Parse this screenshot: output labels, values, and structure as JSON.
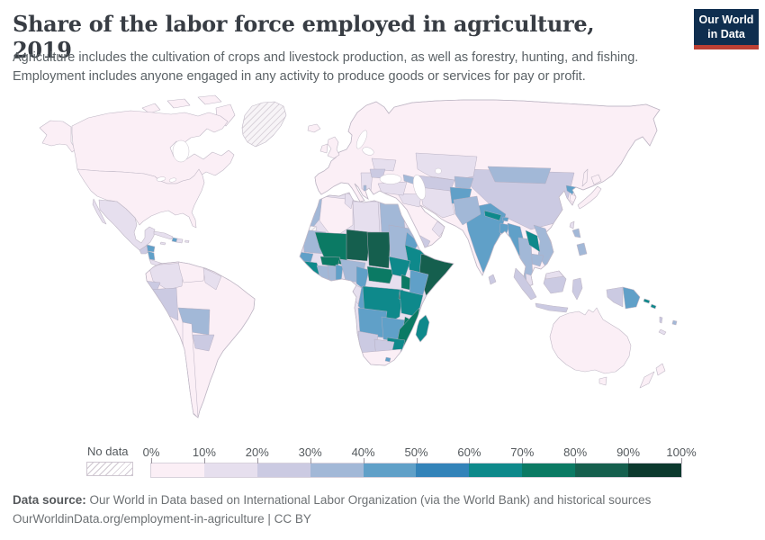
{
  "header": {
    "title": "Share of the labor force employed in agriculture, 2019",
    "subtitle_line1": "Agriculture includes the cultivation of crops and livestock production, as well as forestry, hunting, and fishing.",
    "subtitle_line2": "Employment includes anyone engaged in any activity to produce goods or services for pay or profit."
  },
  "logo": {
    "line1": "Our World",
    "line2": "in Data",
    "bg": "#0f2e4f",
    "accent": "#bc4034"
  },
  "chart_data": {
    "type": "heatmap",
    "subtype": "choropleth-world-map",
    "title": "Share of the labor force employed in agriculture, 2019",
    "unit": "%",
    "legend_position": "bottom",
    "bins": [
      "0-10%",
      "10-20%",
      "20-30%",
      "30-40%",
      "40-50%",
      "50-60%",
      "60-70%",
      "70-80%",
      "80-90%",
      "90-100%"
    ],
    "bin_colors": [
      "#fbeff6",
      "#e6dfee",
      "#cbcae2",
      "#a2b8d7",
      "#60a0c8",
      "#3383b9",
      "#0e898b",
      "#0b7a64",
      "#155f4e",
      "#0c392e"
    ],
    "no_data": [
      "Greenland",
      "Western Sahara"
    ],
    "region_bins": {
      "canada": "0-10%",
      "usa": "0-10%",
      "mexico": "10-20%",
      "guatemala": "20-30%",
      "honduras": "40-50%",
      "nicaragua": "40-50%",
      "costa-rica-panama": "10-20%",
      "cuba": "10-20%",
      "haiti": "40-50%",
      "dominican-republic": "10-20%",
      "colombia": "10-20%",
      "venezuela": "0-10%",
      "ecuador": "20-30%",
      "peru": "20-30%",
      "bolivia": "30-40%",
      "paraguay": "20-30%",
      "brazil": "0-10%",
      "chile": "0-10%",
      "argentina": "0-10%",
      "europe": "0-10%",
      "ukraine": "10-20%",
      "romania": "20-30%",
      "albania": "30-40%",
      "turkey": "10-20%",
      "russia": "0-10%",
      "kazakhstan": "10-20%",
      "china": "20-30%",
      "mongolia": "30-40%",
      "india": "40-50%",
      "pakistan": "30-40%",
      "afghanistan": "40-50%",
      "nepal": "60-70%",
      "laos": "60-70%",
      "vietnam": "30-40%",
      "thailand": "30-40%",
      "myanmar": "40-50%",
      "indonesia": "20-30%",
      "philippines": "30-40%",
      "north-korea": "40-50%",
      "japan": "0-10%",
      "papua-new-guinea": "40-50%",
      "australia": "0-10%",
      "new-zealand": "0-10%",
      "morocco": "30-40%",
      "algeria": "0-10%",
      "libya": "10-20%",
      "egypt": "30-40%",
      "mali": "70-80%",
      "niger": "80-90%",
      "chad": "80-90%",
      "sudan": "30-40%",
      "ethiopia": "60-70%",
      "somalia": "80-90%",
      "kenya": "40-50%",
      "tanzania": "60-70%",
      "drc": "60-70%",
      "angola": "40-50%",
      "zambia": "40-50%",
      "mozambique": "70-80%",
      "zimbabwe": "60-70%",
      "madagascar": "60-70%",
      "namibia": "20-30%",
      "botswana": "20-30%",
      "south-africa": "0-10%",
      "nigeria": "30-40%",
      "saudi-arabia": "0-10%",
      "iran": "10-20%"
    }
  },
  "map": {
    "legend": {
      "no_data_label": "No data",
      "ticks": [
        "0%",
        "10%",
        "20%",
        "30%",
        "40%",
        "50%",
        "60%",
        "70%",
        "80%",
        "90%",
        "100%"
      ],
      "colors": [
        "#fbeff6",
        "#e6dfee",
        "#cbcae2",
        "#a2b8d7",
        "#60a0c8",
        "#3383b9",
        "#0e898b",
        "#0b7a64",
        "#155f4e",
        "#0c392e"
      ]
    },
    "regions": {
      "alaska": 0,
      "canada": 0,
      "usa": 0,
      "greenland": "nodata",
      "mexico": 1,
      "guatemala": 2,
      "honduras": 4,
      "nicaragua": 4,
      "costa-rica-panama": 1,
      "cuba": 1,
      "jamaica": 1,
      "haiti": 4,
      "dominican-republic": 1,
      "puerto-rico": 1,
      "south-america-base": 0,
      "colombia": 1,
      "venezuela": 0,
      "guyanas": 1,
      "ecuador": 2,
      "peru": 2,
      "bolivia": 3,
      "paraguay": 2,
      "chile": 0,
      "eurasia-base": 0,
      "iceland": 0,
      "united-kingdom": 0,
      "ireland": 0,
      "ukraine": 1,
      "romania": 2,
      "balkans": 1,
      "albania": 3,
      "turkey": 1,
      "caucasus": 3,
      "kazakhstan": 1,
      "uzbekistan-turkmenistan": 2,
      "kyrgyzstan-tajikistan": 3,
      "iran": 1,
      "iraq-syria": 1,
      "yemen": 2,
      "oman": 1,
      "afghanistan": 4,
      "pakistan": 3,
      "india": 4,
      "nepal": 6,
      "bhutan": 4,
      "bangladesh": 4,
      "sri-lanka": 2,
      "myanmar": 4,
      "thailand": 3,
      "laos": 6,
      "vietnam": 3,
      "cambodia": 3,
      "malaysia": 1,
      "china": 2,
      "mongolia": 3,
      "north-korea": 4,
      "south-korea": 0,
      "japan": 0,
      "sakhalin": 0,
      "taiwan": 1,
      "philippines": 3,
      "sumatra": 2,
      "java": 2,
      "borneo": 2,
      "borneo-malaysia": 1,
      "sulawesi": 2,
      "west-papua": 2,
      "papua-new-guinea": 4,
      "solomon-islands": 6,
      "vanuatu": 2,
      "fiji": 3,
      "new-caledonia": 1,
      "australia": 0,
      "new-zealand": 0,
      "africa-base": 1,
      "morocco": 3,
      "western-sahara": "nodata",
      "algeria": 0,
      "tunisia": 1,
      "libya": 1,
      "egypt": 3,
      "mauritania": 3,
      "mali": 7,
      "niger": 8,
      "chad": 8,
      "sudan": 3,
      "eritrea": 4,
      "ethiopia": 6,
      "somalia": 8,
      "senegal": 4,
      "guinea": 6,
      "cote-divoire": 3,
      "ghana": 3,
      "togo-benin": 4,
      "burkina-faso": 7,
      "nigeria": 3,
      "cameroon": 4,
      "central-african-republic": 7,
      "south-sudan": 6,
      "gabon": 1,
      "congo": 4,
      "drc": 6,
      "uganda": 7,
      "kenya": 4,
      "rwanda-burundi": 8,
      "tanzania": 6,
      "angola": 4,
      "zambia": 4,
      "malawi": 7,
      "mozambique": 7,
      "zimbabwe": 6,
      "namibia": 2,
      "botswana": 2,
      "south-africa": 0,
      "lesotho": 4,
      "madagascar": 6
    }
  },
  "footer": {
    "source_label": "Data source:",
    "source_text": " Our World in Data based on International Labor Organization (via the World Bank) and historical sources",
    "link_line": "OurWorldinData.org/employment-in-agriculture | CC BY"
  }
}
